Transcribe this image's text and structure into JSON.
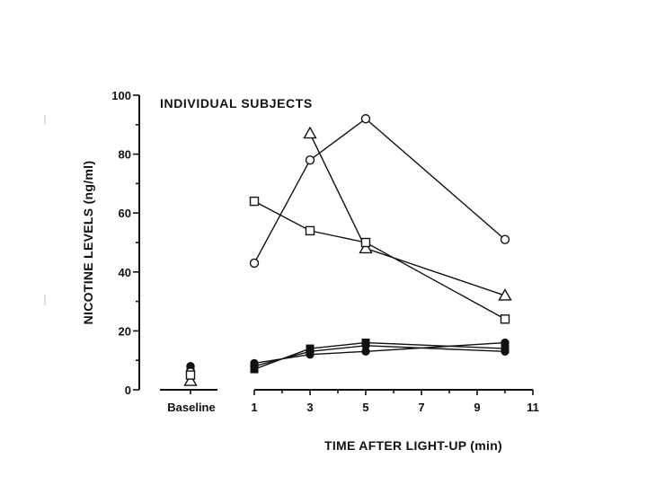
{
  "chart_data": {
    "type": "line",
    "title": "INDIVIDUAL SUBJECTS",
    "xlabel": "TIME AFTER LIGHT-UP (min)",
    "ylabel": "NICOTINE LEVELS (ng/ml)",
    "ylim": [
      0,
      100
    ],
    "xlim": [
      1,
      11
    ],
    "x_ticks": [
      1,
      3,
      5,
      7,
      9,
      11
    ],
    "y_ticks": [
      0,
      20,
      40,
      60,
      80,
      100
    ],
    "baseline_label": "Baseline",
    "grid": false,
    "series": [
      {
        "marker": "circle-open",
        "baseline": 6,
        "x": [
          1,
          3,
          5,
          10
        ],
        "values": [
          43,
          78,
          92,
          51
        ]
      },
      {
        "marker": "triangle-open",
        "baseline": 3,
        "x": [
          3,
          5,
          10
        ],
        "values": [
          87,
          48,
          32
        ]
      },
      {
        "marker": "square-open",
        "baseline": 5,
        "x": [
          1,
          3,
          5,
          10
        ],
        "values": [
          64,
          54,
          50,
          24
        ]
      },
      {
        "marker": "circle-filled",
        "baseline": 8,
        "x": [
          1,
          3,
          5,
          10
        ],
        "values": [
          9,
          12,
          13,
          16
        ]
      },
      {
        "marker": "square-filled",
        "baseline": 7,
        "x": [
          1,
          3,
          5,
          10
        ],
        "values": [
          7,
          14,
          16,
          14
        ]
      },
      {
        "marker": "circle-filled",
        "baseline": 5,
        "x": [
          1,
          3,
          5,
          10
        ],
        "values": [
          8,
          13,
          15,
          13
        ]
      }
    ]
  }
}
